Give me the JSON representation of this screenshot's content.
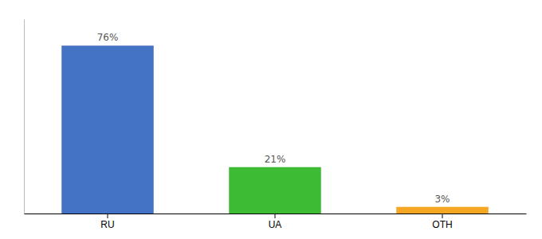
{
  "chart_data": {
    "type": "bar",
    "categories": [
      "RU",
      "UA",
      "OTH"
    ],
    "values": [
      76,
      21,
      3
    ],
    "value_labels": [
      "76%",
      "21%",
      "3%"
    ],
    "colors": [
      "#4472c4",
      "#3dbb35",
      "#f5a623"
    ],
    "ylim": [
      0,
      88
    ],
    "data_labels": true,
    "tick_labels": "x",
    "grid": false
  }
}
